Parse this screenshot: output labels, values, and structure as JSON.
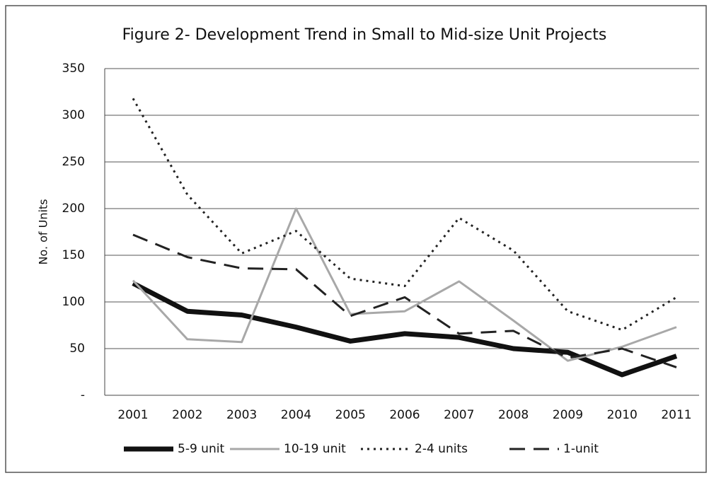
{
  "chart_data": {
    "type": "line",
    "title": "Figure 2- Development Trend in Small to Mid-size Unit Projects",
    "y_label": "No. of Units",
    "categories": [
      "2001",
      "2002",
      "2003",
      "2004",
      "2005",
      "2006",
      "2007",
      "2008",
      "2009",
      "2010",
      "2011"
    ],
    "series": [
      {
        "name": "5-9 unit",
        "color": "#111111",
        "line_style": "solid",
        "line_width": 7,
        "values": [
          120,
          90,
          86,
          73,
          58,
          66,
          62,
          50,
          46,
          22,
          42
        ]
      },
      {
        "name": "10-19 unit",
        "color": "#a8a8a8",
        "line_style": "solid",
        "line_width": 3,
        "values": [
          123,
          60,
          57,
          200,
          87,
          90,
          122,
          80,
          37,
          52,
          73
        ]
      },
      {
        "name": "2-4 units",
        "color": "#222222",
        "line_style": "dotted",
        "line_width": 3,
        "values": [
          318,
          215,
          152,
          176,
          125,
          117,
          190,
          155,
          90,
          70,
          105
        ]
      },
      {
        "name": "1-unit",
        "color": "#222222",
        "line_style": "dashed",
        "line_width": 3,
        "values": [
          172,
          148,
          136,
          135,
          85,
          105,
          66,
          69,
          40,
          50,
          30
        ]
      }
    ],
    "ylim": [
      0,
      350
    ],
    "yticks": [
      {
        "value": 0,
        "label": "-"
      },
      50,
      100,
      150,
      200,
      250,
      300,
      350
    ],
    "grid": true,
    "legend": "bottom"
  }
}
